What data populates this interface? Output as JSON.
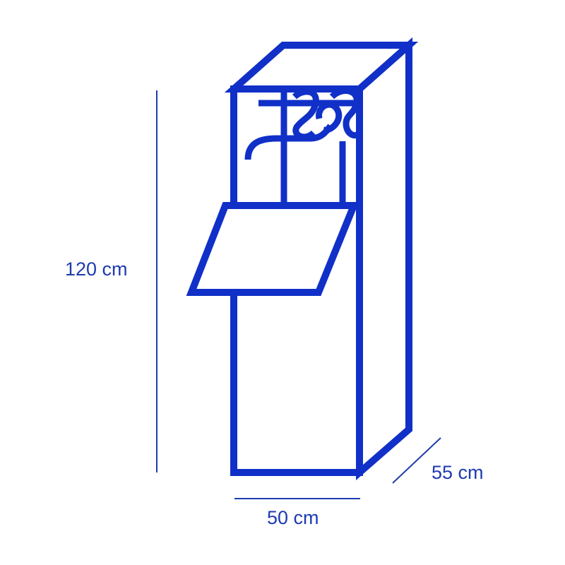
{
  "colors": {
    "stroke": "#1030c8",
    "text": "#1e3bb0",
    "background": "#ffffff"
  },
  "dimensions": {
    "height": "120 cm",
    "width": "50 cm",
    "depth": "55 cm"
  }
}
